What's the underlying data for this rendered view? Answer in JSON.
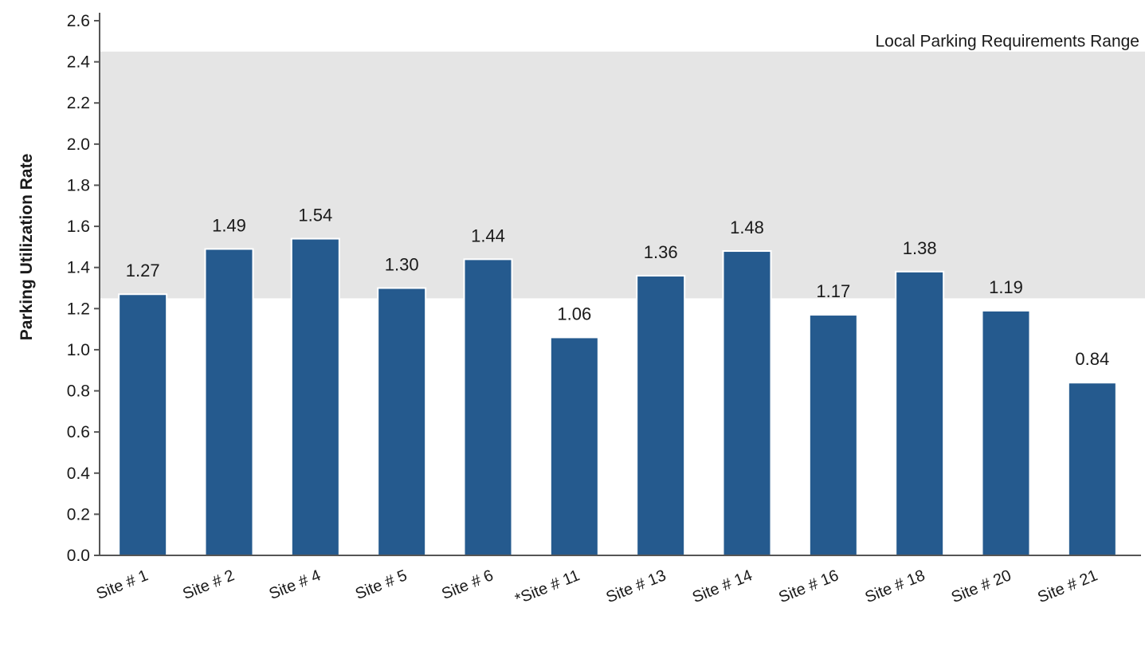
{
  "chart_data": {
    "type": "bar",
    "title": "",
    "xlabel": "",
    "ylabel": "Parking Utilization Rate",
    "ylim": [
      0,
      2.6
    ],
    "yticks": [
      0.0,
      0.2,
      0.4,
      0.6,
      0.8,
      1.0,
      1.2,
      1.4,
      1.6,
      1.8,
      2.0,
      2.2,
      2.4,
      2.6
    ],
    "categories": [
      "Site # 1",
      "Site # 2",
      "Site # 4",
      "Site # 5",
      "Site # 6",
      "*Site # 11",
      "Site # 13",
      "Site # 14",
      "Site # 16",
      "Site # 18",
      "Site # 20",
      "Site # 21"
    ],
    "values": [
      1.27,
      1.49,
      1.54,
      1.3,
      1.44,
      1.06,
      1.36,
      1.48,
      1.17,
      1.38,
      1.19,
      0.84
    ],
    "data_labels": [
      "1.27",
      "1.49",
      "1.54",
      "1.30",
      "1.44",
      "1.06",
      "1.36",
      "1.48",
      "1.17",
      "1.38",
      "1.19",
      "0.84"
    ],
    "grid": false,
    "legend": "none",
    "shaded_range": {
      "label": "Local Parking Requirements Range",
      "from": 1.25,
      "to": 2.45
    },
    "colors": {
      "bar": "#255a8e",
      "band": "#e5e5e5",
      "axis": "#555555"
    }
  }
}
